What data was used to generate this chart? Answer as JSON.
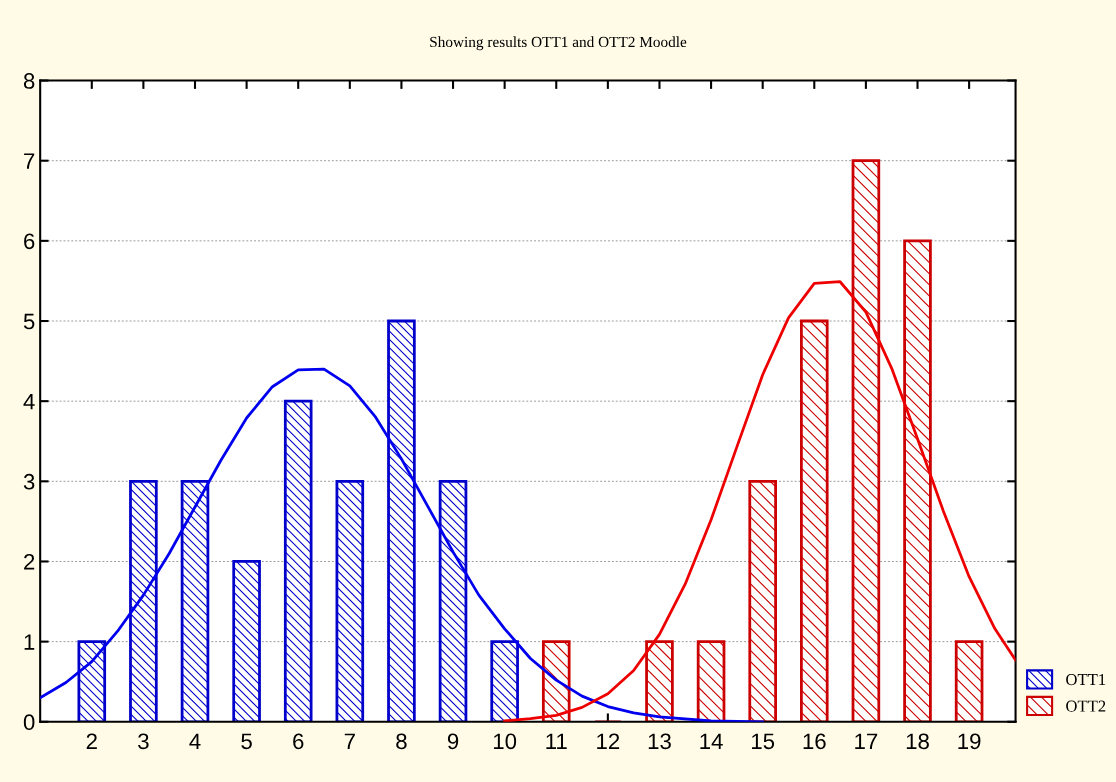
{
  "chart_data": {
    "type": "bar",
    "title": "Showing results OTT1 and OTT2 Moodle",
    "xlim": [
      1,
      19.9
    ],
    "xticks": [
      2,
      3,
      4,
      5,
      6,
      7,
      8,
      9,
      10,
      11,
      12,
      13,
      14,
      15,
      16,
      17,
      18,
      19
    ],
    "ylim": [
      0,
      8
    ],
    "yticks": [
      0,
      1,
      2,
      3,
      4,
      5,
      6,
      7,
      8
    ],
    "grid": "y",
    "legend": "bottom right",
    "series": [
      {
        "name": "OTT1",
        "color": "#0000cc",
        "x": [
          2,
          3,
          4,
          5,
          6,
          7,
          8,
          9,
          10
        ],
        "values": [
          1,
          3,
          3,
          2,
          4,
          3,
          5,
          3,
          1
        ]
      },
      {
        "name": "OTT2",
        "color": "#cc0000",
        "x": [
          11,
          12,
          13,
          14,
          15,
          16,
          17,
          18,
          19
        ],
        "values": [
          1,
          0,
          1,
          1,
          3,
          5,
          7,
          6,
          1
        ]
      },
      {
        "type": "line",
        "color": "#0000ee",
        "x": [
          1,
          1.5,
          2,
          2.5,
          3,
          3.5,
          4,
          4.5,
          5,
          5.5,
          6,
          6.5,
          7,
          7.5,
          8,
          8.5,
          9,
          9.5,
          10,
          10.5,
          11,
          11.5,
          12,
          12.5,
          13,
          14,
          15
        ],
        "values": [
          0.3,
          0.49,
          0.75,
          1.13,
          1.58,
          2.1,
          2.68,
          3.26,
          3.79,
          4.18,
          4.39,
          4.4,
          4.19,
          3.8,
          3.28,
          2.7,
          2.12,
          1.58,
          1.16,
          0.79,
          0.52,
          0.32,
          0.19,
          0.11,
          0.06,
          0.01,
          0
        ]
      },
      {
        "type": "line",
        "color": "#ee0000",
        "x": [
          10,
          10.5,
          11,
          11.5,
          12,
          12.5,
          13,
          13.5,
          14,
          14.5,
          15,
          15.5,
          16,
          16.5,
          17,
          17.5,
          18,
          18.5,
          19,
          19.5,
          19.9
        ],
        "values": [
          0.01,
          0.04,
          0.08,
          0.18,
          0.35,
          0.64,
          1.09,
          1.72,
          2.52,
          3.43,
          4.33,
          5.04,
          5.47,
          5.49,
          5.11,
          4.41,
          3.53,
          2.63,
          1.81,
          1.16,
          0.77
        ]
      }
    ]
  }
}
